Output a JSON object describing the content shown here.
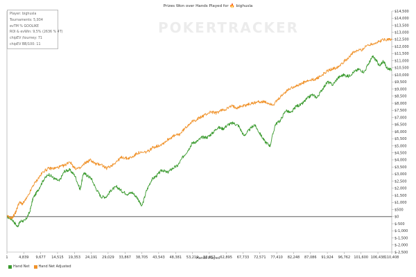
{
  "chart_data": {
    "type": "line",
    "title": "Prizes Won over Hands Played for",
    "player_name": "bighusla",
    "xlabel": "Hands Played",
    "ylabel": "",
    "xlim": [
      1,
      110408
    ],
    "ylim": [
      -2500,
      14500
    ],
    "x_ticks": [
      "1",
      "4,839",
      "9,677",
      "14,515",
      "19,353",
      "24,191",
      "29,029",
      "33,867",
      "38,705",
      "43,543",
      "48,381",
      "53,219",
      "58,057",
      "62,895",
      "67,733",
      "72,571",
      "77,410",
      "82,248",
      "87,086",
      "91,924",
      "96,762",
      "101,600",
      "106,438",
      "110,408"
    ],
    "y_ticks": [
      "$14,500",
      "$14,000",
      "$13,500",
      "$13,000",
      "$12,500",
      "$12,000",
      "$11,500",
      "$11,000",
      "$10,500",
      "$10,000",
      "$9,500",
      "$9,000",
      "$8,500",
      "$8,000",
      "$7,500",
      "$7,000",
      "$6,500",
      "$6,000",
      "$5,500",
      "$5,000",
      "$4,500",
      "$4,000",
      "$3,500",
      "$3,000",
      "$2,500",
      "$2,000",
      "$1,500",
      "$1,000",
      "$500",
      "$0",
      "$-500",
      "$-1,000",
      "$-1,500",
      "$-2,000",
      "$-2,500"
    ],
    "grid": false,
    "legend": "bottom-left",
    "series": [
      {
        "name": "Hand Net",
        "color": "#3a9a2e",
        "x": [
          1,
          1500,
          3000,
          4000,
          5200,
          6500,
          7500,
          9000,
          10500,
          12000,
          13500,
          15000,
          16500,
          18000,
          19500,
          21000,
          22000,
          23000,
          24200,
          25500,
          27000,
          28500,
          30000,
          31500,
          33000,
          34500,
          36000,
          37500,
          38700,
          40000,
          41500,
          43000,
          44500,
          46000,
          47500,
          49000,
          50500,
          52000,
          53200,
          54500,
          56000,
          57500,
          59000,
          60500,
          62000,
          63500,
          65000,
          66500,
          68000,
          69500,
          71000,
          72500,
          74000,
          75500,
          77000,
          78500,
          80000,
          81500,
          83000,
          84500,
          86000,
          87500,
          89000,
          90500,
          92000,
          93500,
          95000,
          96500,
          98000,
          99500,
          101000,
          102500,
          104000,
          105000,
          106000,
          107000,
          108000,
          109000,
          110408
        ],
        "y": [
          0,
          -200,
          -700,
          -300,
          -300,
          300,
          1300,
          1900,
          2600,
          3000,
          2700,
          2500,
          3200,
          3300,
          2900,
          1900,
          3100,
          2900,
          2700,
          2000,
          1400,
          1400,
          1900,
          2100,
          1800,
          1600,
          1700,
          1300,
          700,
          1800,
          2600,
          2900,
          3300,
          3100,
          3400,
          3600,
          4200,
          4700,
          5200,
          5300,
          5600,
          5600,
          5900,
          6300,
          6200,
          6500,
          6600,
          6400,
          5700,
          6100,
          6500,
          5900,
          5300,
          5000,
          6500,
          6800,
          7500,
          7300,
          7800,
          7900,
          8300,
          8600,
          8400,
          9000,
          9500,
          9300,
          9800,
          10000,
          9900,
          10200,
          10400,
          10200,
          10900,
          11300,
          11000,
          10600,
          11000,
          10500,
          10300
        ]
      },
      {
        "name": "Hand Net Adjusted",
        "color": "#f0922a",
        "x": [
          1,
          1500,
          2500,
          3500,
          4500,
          6000,
          7500,
          9000,
          10500,
          12000,
          13500,
          15000,
          16500,
          18000,
          19500,
          21000,
          22500,
          24000,
          25500,
          27000,
          28500,
          30000,
          31500,
          33000,
          34500,
          36000,
          37500,
          39000,
          40500,
          42000,
          43500,
          45000,
          46500,
          48000,
          49500,
          51000,
          52500,
          54000,
          55500,
          57000,
          58500,
          60000,
          61500,
          63000,
          64500,
          66000,
          67500,
          69000,
          70500,
          72000,
          73500,
          75000,
          76500,
          78000,
          79500,
          81000,
          82500,
          84000,
          85500,
          87000,
          88500,
          90000,
          91500,
          93000,
          94500,
          96000,
          97500,
          99000,
          100500,
          102000,
          103500,
          105000,
          106500,
          108000,
          109500,
          110408
        ],
        "y": [
          0,
          -100,
          300,
          1000,
          900,
          1400,
          2200,
          2700,
          3200,
          3400,
          3400,
          3500,
          3600,
          3900,
          3400,
          3400,
          3800,
          4000,
          3700,
          3700,
          3400,
          3600,
          3900,
          4200,
          4100,
          4200,
          4500,
          4500,
          4600,
          4900,
          5000,
          5200,
          5500,
          5700,
          5800,
          6200,
          6600,
          6800,
          7000,
          7200,
          7400,
          7300,
          7500,
          7600,
          7800,
          7700,
          7800,
          7900,
          8000,
          8100,
          8100,
          8000,
          7900,
          8300,
          8700,
          9000,
          9200,
          9300,
          9500,
          9600,
          9700,
          9900,
          10200,
          10400,
          10500,
          10800,
          11100,
          11500,
          11700,
          11800,
          12100,
          12200,
          12300,
          12500,
          12500,
          12500
        ]
      }
    ]
  },
  "stats": {
    "player": "Player: bighusla",
    "tournaments": "Tournaments: 5,934",
    "evtm": "evTM % GOOLIKE",
    "roi": "ROI & evWin: 9,5% (2636 % 4T)",
    "chip_tourney": "chipEV /tourney: 71",
    "chip_bb": "chipEV BB/100: 11"
  },
  "watermark": "POKERTRACKER",
  "legend": {
    "hand_net": "Hand Net",
    "hand_net_adjusted": "Hand Net Adjusted"
  }
}
